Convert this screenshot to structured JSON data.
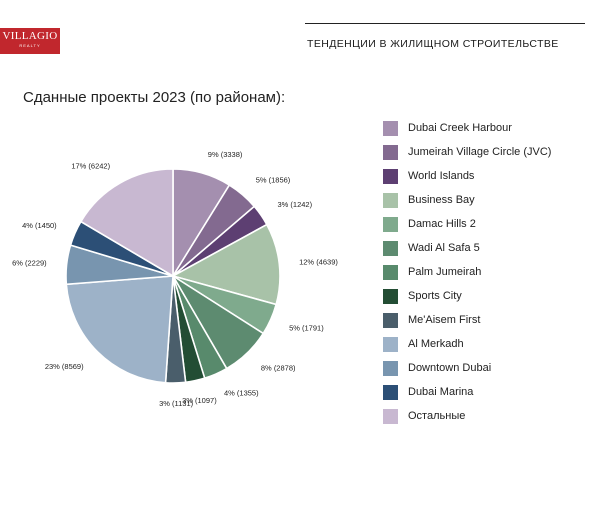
{
  "brand": {
    "name": "VILLAGIO",
    "tagline": "REALTY"
  },
  "header": {
    "title": "ТЕНДЕНЦИИ В ЖИЛИЩНОМ СТРОИТЕЛЬСТВЕ"
  },
  "chart_data": {
    "type": "pie",
    "title": "Сданные проекты 2023 (по районам):",
    "legend_position": "right",
    "slices": [
      {
        "name": "Dubai Creek Harbour",
        "percent": 9,
        "value": 3338,
        "label": "9% (3338)",
        "color": "#a48faf"
      },
      {
        "name": "Jumeirah Village Circle (JVC)",
        "percent": 5,
        "value": 1856,
        "label": "5% (1856)",
        "color": "#836a90"
      },
      {
        "name": "World Islands",
        "percent": 3,
        "value": 1242,
        "label": "3% (1242)",
        "color": "#5d3f72"
      },
      {
        "name": "Business Bay",
        "percent": 12,
        "value": 4639,
        "label": "12% (4639)",
        "color": "#a8c2a8"
      },
      {
        "name": "Damac Hills 2",
        "percent": 5,
        "value": 1791,
        "label": "5% (1791)",
        "color": "#7faa8d"
      },
      {
        "name": "Wadi Al Safa 5",
        "percent": 8,
        "value": 2878,
        "label": "8% (2878)",
        "color": "#5d8b70"
      },
      {
        "name": "Palm Jumeirah",
        "percent": 4,
        "value": 1355,
        "label": "4% (1355)",
        "color": "#588a6c"
      },
      {
        "name": "Sports City",
        "percent": 3,
        "value": 1097,
        "label": "3% (1097)",
        "color": "#234d34"
      },
      {
        "name": "Me'Aisem First",
        "percent": 3,
        "value": 1131,
        "label": "3% (1131)",
        "color": "#4a5e6b"
      },
      {
        "name": "Al Merkadh",
        "percent": 23,
        "value": 8569,
        "label": "23% (8569)",
        "color": "#9db2c8"
      },
      {
        "name": "Downtown Dubai",
        "percent": 6,
        "value": 2229,
        "label": "6% (2229)",
        "color": "#7895af"
      },
      {
        "name": "Dubai Marina",
        "percent": 4,
        "value": 1450,
        "label": "4% (1450)",
        "color": "#2c4f76"
      },
      {
        "name": "Остальные",
        "percent": 17,
        "value": 6242,
        "label": "17% (6242)",
        "color": "#c8b8d1"
      }
    ]
  }
}
